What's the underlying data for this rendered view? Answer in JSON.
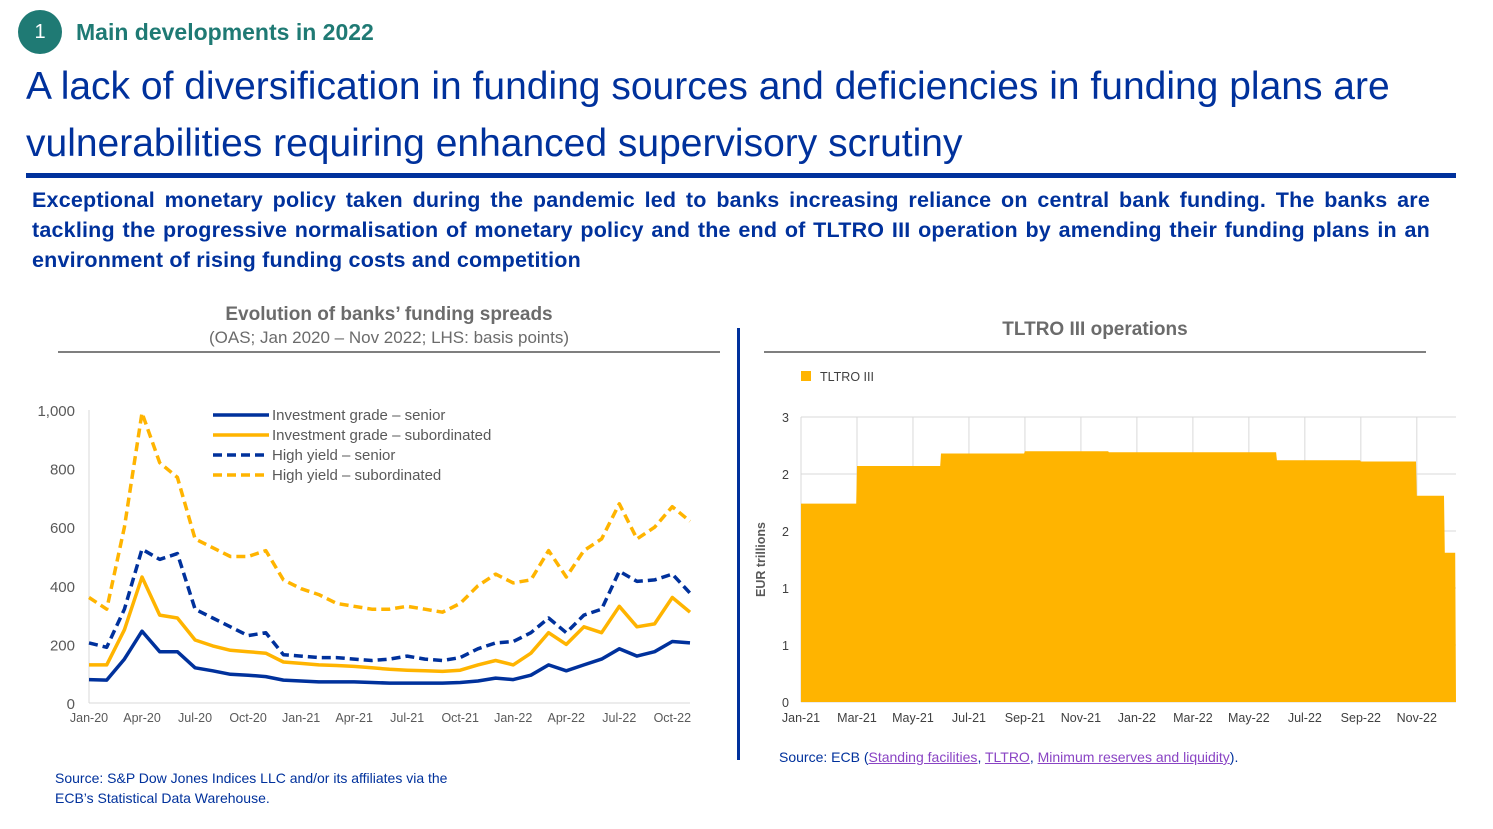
{
  "header": {
    "badge_number": "1",
    "section_title": "Main developments in 2022",
    "main_title": "A lack of diversification in funding sources and deficiencies in funding plans are vulnerabilities requiring enhanced supervisory scrutiny",
    "intro": "Exceptional monetary policy taken during the pandemic led to banks increasing reliance on central bank funding. The banks are tackling the progressive normalisation of monetary policy and the end of TLTRO III operation by amending their funding plans in an environment of rising funding costs and competition"
  },
  "colors": {
    "navy": "#00319c",
    "teal": "#1f7a74",
    "gold": "#ffb400",
    "grey_text": "#6b6b6b",
    "link": "#8a44c4"
  },
  "left_panel": {
    "source": "Source: S&P Dow Jones Indices LLC and/or its affiliates via the ECB’s Statistical Data Warehouse."
  },
  "right_panel": {
    "source_prefix": "Source: ECB (",
    "links": [
      "Standing facilities",
      "TLTRO",
      "Minimum reserves and liquidity"
    ],
    "sep": ", ",
    "source_suffix": ")."
  },
  "chart_data": [
    {
      "type": "line",
      "title": "Evolution of banks’ funding spreads",
      "subtitle": "(OAS; Jan 2020 – Nov 2022; LHS: basis points)",
      "xlabel": "",
      "ylabel": "",
      "ylim": [
        0,
        1000
      ],
      "yticks": [
        0,
        200,
        400,
        600,
        800,
        1000
      ],
      "ytick_labels": [
        "0",
        "200",
        "400",
        "600",
        "800",
        "1,000"
      ],
      "x": [
        "Jan-20",
        "Feb-20",
        "Mar-20",
        "Apr-20",
        "May-20",
        "Jun-20",
        "Jul-20",
        "Aug-20",
        "Sep-20",
        "Oct-20",
        "Nov-20",
        "Dec-20",
        "Jan-21",
        "Feb-21",
        "Mar-21",
        "Apr-21",
        "May-21",
        "Jun-21",
        "Jul-21",
        "Aug-21",
        "Sep-21",
        "Oct-21",
        "Nov-21",
        "Dec-21",
        "Jan-22",
        "Feb-22",
        "Mar-22",
        "Apr-22",
        "May-22",
        "Jun-22",
        "Jul-22",
        "Aug-22",
        "Sep-22",
        "Oct-22",
        "Nov-22"
      ],
      "xtick_labels": [
        "Jan-20",
        "Apr-20",
        "Jul-20",
        "Oct-20",
        "Jan-21",
        "Apr-21",
        "Jul-21",
        "Oct-21",
        "Jan-22",
        "Apr-22",
        "Jul-22",
        "Oct-22"
      ],
      "legend_position": "top-center",
      "grid": false,
      "series": [
        {
          "name": "Investment  grade – senior",
          "style": "solid",
          "color": "#00319c",
          "values": [
            80,
            78,
            150,
            245,
            175,
            175,
            120,
            110,
            98,
            95,
            90,
            78,
            75,
            72,
            72,
            72,
            70,
            68,
            68,
            68,
            68,
            70,
            75,
            85,
            80,
            95,
            130,
            110,
            130,
            150,
            185,
            160,
            175,
            210,
            205
          ]
        },
        {
          "name": "Investment  grade – subordinated",
          "style": "solid",
          "color": "#ffb400",
          "values": [
            130,
            130,
            250,
            430,
            300,
            290,
            215,
            195,
            180,
            175,
            170,
            140,
            135,
            130,
            128,
            125,
            120,
            115,
            112,
            110,
            108,
            112,
            130,
            145,
            130,
            170,
            240,
            200,
            260,
            240,
            330,
            260,
            270,
            360,
            310
          ]
        },
        {
          "name": "High yield – senior",
          "style": "dashed",
          "color": "#00319c",
          "values": [
            205,
            190,
            320,
            525,
            490,
            510,
            320,
            290,
            260,
            230,
            240,
            165,
            160,
            155,
            155,
            150,
            145,
            150,
            160,
            150,
            145,
            155,
            185,
            205,
            210,
            240,
            290,
            240,
            300,
            320,
            450,
            415,
            420,
            440,
            375
          ]
        },
        {
          "name": "High yield – subordinated",
          "style": "dashed",
          "color": "#ffb400",
          "values": [
            360,
            320,
            600,
            990,
            820,
            770,
            560,
            530,
            500,
            500,
            520,
            420,
            390,
            370,
            340,
            330,
            320,
            320,
            330,
            320,
            310,
            340,
            400,
            440,
            410,
            420,
            520,
            430,
            520,
            560,
            680,
            560,
            600,
            670,
            620
          ]
        }
      ]
    },
    {
      "type": "area",
      "title": "TLTRO III operations",
      "legend": [
        "TLTRO III"
      ],
      "legend_position": "top-left",
      "ylabel": "EUR trillions",
      "ylim": [
        0,
        2.5
      ],
      "yticks": [
        0,
        0.5,
        1.0,
        1.5,
        2.0,
        2.5
      ],
      "ytick_labels": [
        "0",
        "1",
        "1",
        "2",
        "2",
        "3"
      ],
      "xtick_labels": [
        "Jan-21",
        "Mar-21",
        "May-21",
        "Jul-21",
        "Sep-21",
        "Nov-21",
        "Jan-22",
        "Mar-22",
        "May-22",
        "Jul-22",
        "Sep-22",
        "Nov-22"
      ],
      "grid": true,
      "series": [
        {
          "name": "TLTRO III",
          "color": "#ffb400",
          "steps": [
            {
              "from": "Jan-21",
              "value": 1.74
            },
            {
              "from": "Mar-21",
              "value": 2.07
            },
            {
              "from": "Jun-21",
              "value": 2.18
            },
            {
              "from": "Sep-21",
              "value": 2.2
            },
            {
              "from": "Dec-21",
              "value": 2.19
            },
            {
              "from": "Jun-22",
              "value": 2.12
            },
            {
              "from": "Sep-22",
              "value": 2.11
            },
            {
              "from": "Nov-22",
              "value": 1.81
            },
            {
              "from": "Dec-22",
              "value": 1.31
            }
          ]
        }
      ]
    }
  ]
}
